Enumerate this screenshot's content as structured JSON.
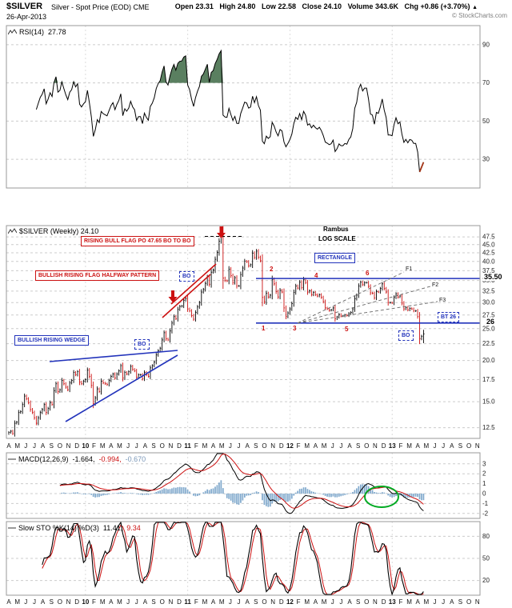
{
  "header": {
    "symbol": "$SILVER",
    "name": "Silver - Spot Price (EOD) CME",
    "date": "26-Apr-2013",
    "quote": {
      "open_label": "Open",
      "open": "23.31",
      "high_label": "High",
      "high": "24.80",
      "low_label": "Low",
      "low": "22.58",
      "close_label": "Close",
      "close": "24.10",
      "volume_label": "Volume",
      "volume": "343.6K",
      "chg_label": "Chg",
      "chg": "+0.86 (+3.70%)",
      "chg_arrow": "▲"
    },
    "copyright": "© StockCharts.com"
  },
  "rsi_panel": {
    "label": "RSI(14)",
    "value": "27.78",
    "axis": [
      "90",
      "70",
      "50",
      "30"
    ]
  },
  "main_panel": {
    "label": "$SILVER (Weekly) 24.10",
    "axis": [
      "47.5",
      "45.0",
      "42.5",
      "40.0",
      "37.5",
      "35.0",
      "32.5",
      "30.0",
      "27.5",
      "25.0",
      "22.5",
      "20.0",
      "17.5",
      "15.0",
      "12.5"
    ],
    "annotations": {
      "flag_po": "RISING BULL FLAG PO 47.65 BO TO BO",
      "halfway": "BULLISH RISING FLAG HALFWAY PATTERN",
      "wedge": "BULLISH RISING WEDGE",
      "rectangle": "RECTANGLE",
      "rambus": "Rambus",
      "log_scale": "LOG SCALE",
      "bo": "BO",
      "bt26": "BT 26",
      "level_top": "35.50",
      "level_bottom": "26",
      "fan": [
        "F1",
        "F2",
        "F3"
      ],
      "numbers": [
        "1",
        "2",
        "3",
        "4",
        "5",
        "6"
      ]
    }
  },
  "macd_panel": {
    "label": "MACD(12,26,9)",
    "v1": "-1.664,",
    "v2": "-0.994,",
    "v3": "-0.670",
    "axis": [
      "3",
      "2",
      "1",
      "0",
      "-1",
      "-2"
    ]
  },
  "sto_panel": {
    "label": "Slow STO %K(14) %D(3)",
    "v1": "11.41,",
    "v2": "9.34",
    "axis": [
      "80",
      "50",
      "20"
    ]
  },
  "chart_data": {
    "type": "ohlc",
    "title": "$SILVER Silver - Spot Price (EOD) CME, Weekly",
    "scale": "log",
    "x_start": "Apr-2009",
    "x_end": "26-Apr-2013",
    "ylim": [
      11.6,
      51.4
    ],
    "x_labels": [
      "A",
      "M",
      "J",
      "J",
      "A",
      "S",
      "O",
      "N",
      "D",
      "10",
      "F",
      "M",
      "A",
      "M",
      "J",
      "J",
      "A",
      "S",
      "O",
      "N",
      "D",
      "11",
      "F",
      "M",
      "A",
      "M",
      "J",
      "J",
      "A",
      "S",
      "O",
      "N",
      "D",
      "12",
      "F",
      "M",
      "A",
      "M",
      "J",
      "J",
      "A",
      "S",
      "O",
      "N",
      "D",
      "13",
      "F",
      "M",
      "A",
      "M",
      "J",
      "J",
      "A",
      "S",
      "O",
      "N"
    ],
    "closes": [
      12.1,
      12.2,
      12.0,
      12.9,
      13.0,
      13.9,
      14.0,
      14.7,
      15.6,
      15.3,
      14.9,
      14.2,
      13.9,
      13.4,
      12.9,
      13.4,
      13.9,
      14.2,
      14.7,
      13.9,
      14.3,
      14.9,
      14.7,
      16.2,
      17.0,
      16.1,
      16.3,
      17.4,
      17.0,
      16.6,
      16.3,
      17.1,
      17.4,
      18.4,
      18.1,
      18.5,
      17.2,
      17.0,
      17.3,
      17.5,
      18.7,
      17.9,
      16.8,
      14.8,
      15.4,
      16.4,
      16.1,
      17.3,
      17.1,
      17.0,
      16.9,
      17.4,
      17.9,
      18.2,
      17.7,
      18.2,
      18.6,
      19.3,
      17.7,
      18.4,
      18.2,
      18.5,
      19.2,
      18.8,
      18.6,
      17.8,
      18.1,
      18.1,
      17.6,
      18.4,
      18.1,
      17.9,
      19.0,
      19.3,
      19.8,
      20.8,
      21.4,
      21.8,
      23.1,
      24.3,
      23.3,
      23.1,
      24.6,
      26.0,
      27.2,
      26.8,
      28.6,
      29.2,
      29.3,
      30.5,
      30.9,
      28.7,
      28.3,
      27.4,
      26.7,
      28.0,
      29.1,
      30.0,
      32.3,
      32.9,
      34.3,
      35.9,
      34.1,
      37.1,
      37.7,
      40.6,
      42.6,
      46.1,
      48.6,
      35.6,
      35.0,
      34.9,
      37.9,
      36.2,
      34.5,
      35.7,
      33.7,
      33.7,
      36.5,
      38.2,
      40.1,
      39.9,
      38.8,
      39.1,
      42.4,
      41.1,
      43.0,
      41.2,
      40.2,
      31.1,
      30.1,
      32.0,
      31.2,
      31.6,
      35.3,
      34.2,
      32.4,
      31.2,
      32.7,
      32.3,
      28.9,
      27.2,
      27.9,
      28.7,
      29.8,
      32.2,
      33.7,
      33.2,
      34.6,
      33.3,
      35.3,
      34.5,
      32.3,
      32.6,
      31.7,
      32.2,
      31.7,
      31.4,
      31.7,
      31.1,
      30.2,
      28.9,
      28.7,
      28.4,
      28.5,
      28.9,
      26.8,
      27.1,
      27.6,
      27.3,
      27.3,
      27.5,
      27.4,
      27.8,
      28.0,
      28.7,
      30.8,
      31.6,
      33.7,
      34.6,
      34.0,
      34.5,
      34.5,
      33.6,
      32.1,
      32.0,
      31.0,
      32.4,
      32.3,
      33.1,
      34.2,
      33.1,
      32.3,
      30.0,
      30.0,
      29.9,
      31.1,
      31.9,
      31.2,
      31.4,
      29.9,
      28.7,
      29.0,
      28.5,
      28.8,
      28.7,
      28.3,
      28.3,
      27.2,
      23.3,
      23.7,
      24.1
    ],
    "last_bar": {
      "open": 23.31,
      "high": 24.8,
      "low": 22.58,
      "close": 24.1
    },
    "levels": {
      "rectangle_top": 35.5,
      "rectangle_bottom": 26,
      "po": 47.65
    },
    "indicators": [
      {
        "name": "RSI",
        "params": "14",
        "last": 27.78,
        "gridlines": [
          90,
          70,
          50,
          30
        ]
      },
      {
        "name": "MACD",
        "params": "12,26,9",
        "last": [
          -1.664,
          -0.994,
          -0.67
        ],
        "gridlines": [
          3,
          2,
          1,
          0,
          -1,
          -2
        ]
      },
      {
        "name": "Slow STO",
        "params": "%K(14) %D(3)",
        "last": [
          11.41,
          9.34
        ],
        "gridlines": [
          80,
          50,
          20
        ]
      }
    ]
  }
}
